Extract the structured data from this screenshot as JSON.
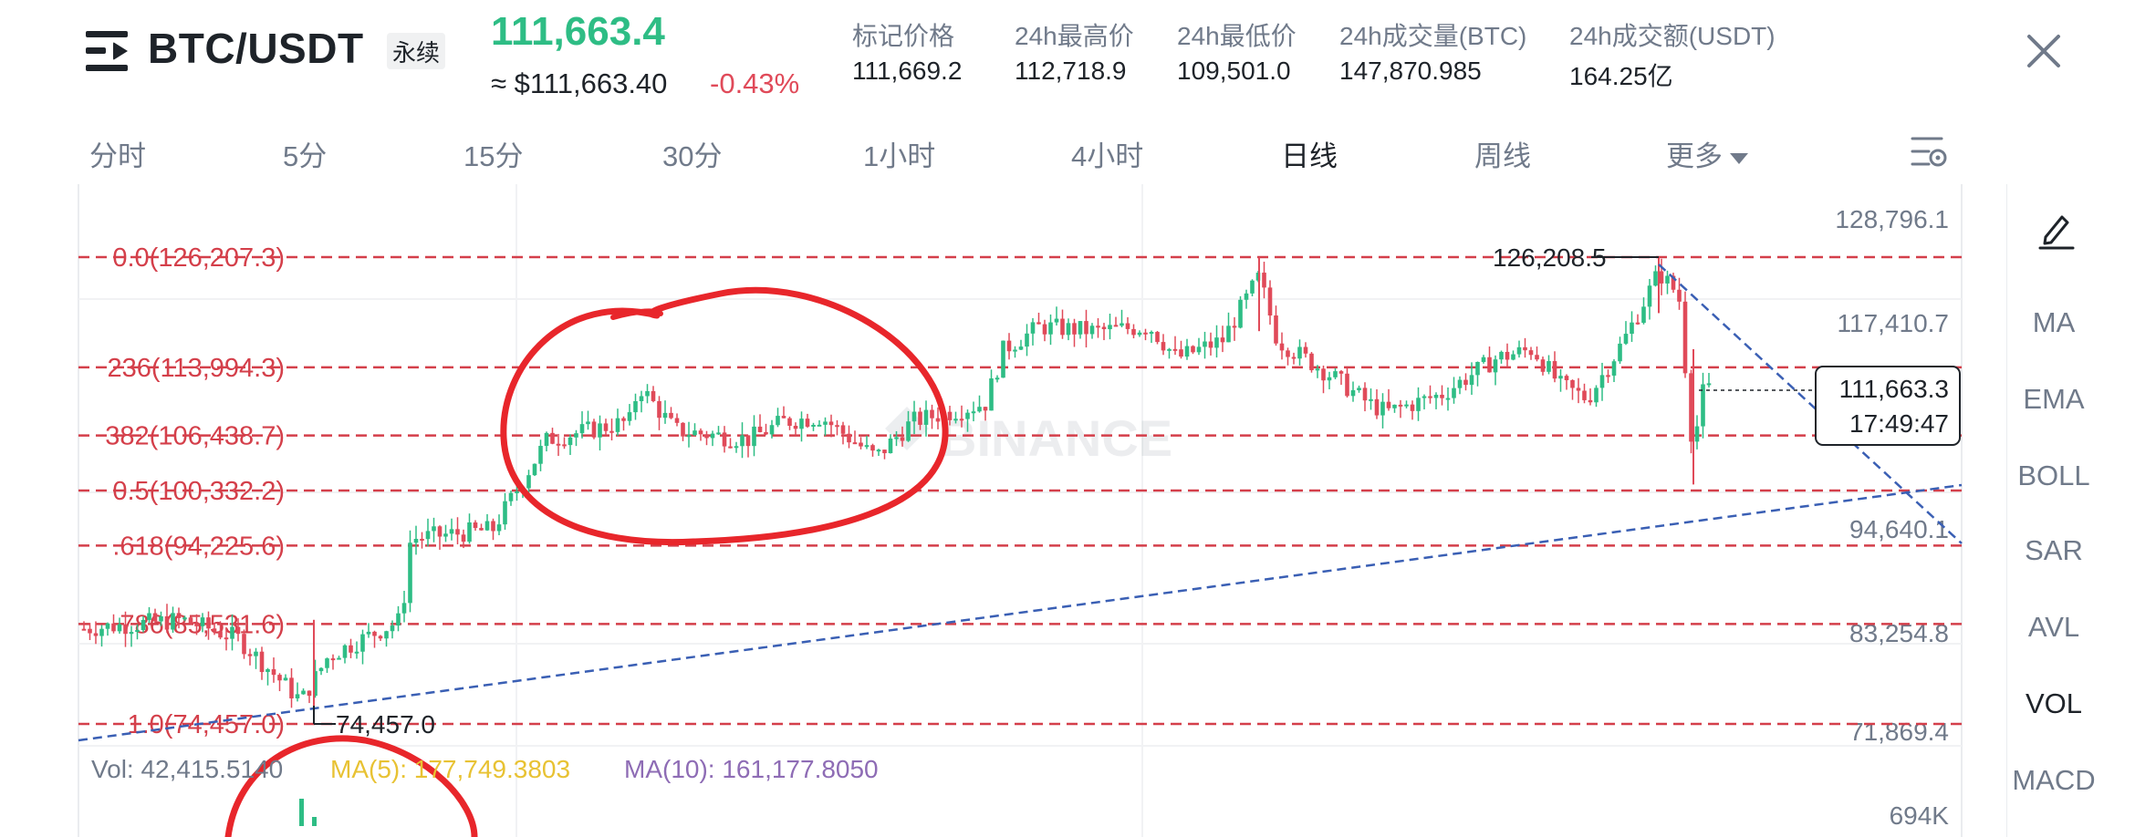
{
  "header": {
    "pair": "BTC/USDT",
    "contract_badge": "永续",
    "last_price": "111,663.4",
    "usd_price": "≈ $111,663.40",
    "change_pct": "-0.43%",
    "stats": [
      {
        "label": "标记价格",
        "value": "111,669.2"
      },
      {
        "label": "24h最高价",
        "value": "112,718.9"
      },
      {
        "label": "24h最低价",
        "value": "109,501.0"
      },
      {
        "label": "24h成交量(BTC)",
        "value": "147,870.985"
      },
      {
        "label": "24h成交额(USDT)",
        "value": "164.25亿"
      }
    ]
  },
  "timeframes": [
    "分时",
    "5分",
    "15分",
    "30分",
    "1小时",
    "4小时",
    "日线",
    "周线",
    "更多"
  ],
  "active_timeframe": "日线",
  "indicators": [
    "MA",
    "EMA",
    "BOLL",
    "SAR",
    "AVL",
    "VOL",
    "MACD"
  ],
  "active_indicator": "VOL",
  "chart": {
    "price_axis": [
      "128,796.1",
      "117,410.7",
      "94,640.1",
      "83,254.8",
      "71,869.4"
    ],
    "fib_levels": [
      {
        "label": "0.0(126,207.3)",
        "price": 126207.3
      },
      {
        "label": "236(113,994.3)",
        "price": 113994.3
      },
      {
        "label": "382(106,438.7)",
        "price": 106438.7
      },
      {
        "label": "0.5(100,332.2)",
        "price": 100332.2
      },
      {
        "label": ".618(94,225.6)",
        "price": 94225.6
      },
      {
        "label": "786(85,531.6)",
        "price": 85531.6
      },
      {
        "label": "1.0(74,457.0)",
        "price": 74457.0
      }
    ],
    "high_marker": "126,208.5",
    "low_marker": "74,457.0",
    "current_price_tag": "111,663.3",
    "countdown": "17:49:47",
    "watermark": "BINANCE",
    "colors": {
      "up": "#2ebd85",
      "down": "#e04a59",
      "fib": "#d43f4a",
      "trend": "#3a5fb4"
    }
  },
  "volume": {
    "vol": "Vol: 42,415.5140",
    "ma5": "MA(5): 177,749.3803",
    "ma10": "MA(10): 161,177.8050",
    "axis_top": "694K",
    "colors": {
      "ma5": "#e8c233",
      "ma10": "#8e6cb5"
    }
  }
}
